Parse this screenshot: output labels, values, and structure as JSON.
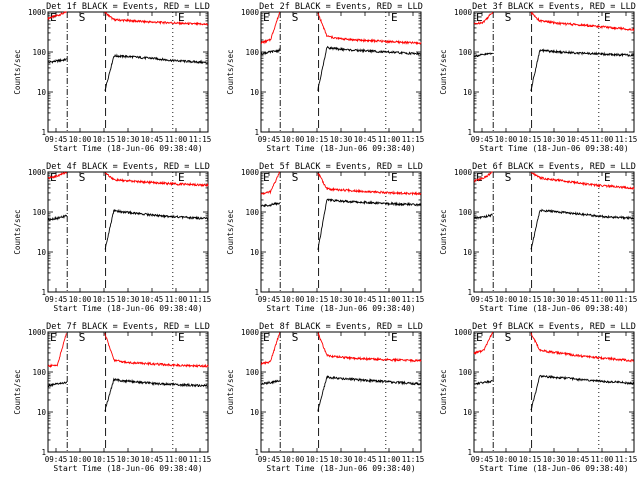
{
  "chart_data": [
    {
      "type": "line",
      "title": "Det 1f BLACK = Events, RED = LLD",
      "xlabel": "Start Time (18-Jun-06 09:38:40)",
      "ylabel": "Counts/sec",
      "yscale": "log",
      "ylim": [
        1,
        1000
      ],
      "yticks": [
        "1",
        "10",
        "100",
        "1000"
      ],
      "xticks": [
        "09:45",
        "10:00",
        "10:15",
        "10:30",
        "10:45",
        "11:00",
        "11:15"
      ],
      "markers": [
        "E",
        "S",
        "E"
      ],
      "series": [
        {
          "color": "#ff0000",
          "values": [
            700,
            820,
            1000,
            null,
            null,
            null,
            1000,
            640,
            620,
            600,
            580,
            560,
            550,
            540,
            520,
            510,
            500,
            490
          ]
        },
        {
          "color": "#000000",
          "values": [
            55,
            60,
            65,
            null,
            null,
            null,
            10,
            80,
            78,
            76,
            72,
            70,
            66,
            62,
            60,
            58,
            56,
            54
          ]
        }
      ]
    },
    {
      "type": "line",
      "title": "Det 2f BLACK = Events, RED = LLD",
      "xlabel": "Start Time (18-Jun-06 09:38:40)",
      "ylabel": "Counts/sec",
      "yscale": "log",
      "ylim": [
        1,
        1000
      ],
      "yticks": [
        "1",
        "10",
        "100",
        "1000"
      ],
      "xticks": [
        "09:45",
        "10:00",
        "10:15",
        "10:30",
        "10:45",
        "11:00",
        "11:15"
      ],
      "markers": [
        "E",
        "S",
        "E"
      ],
      "series": [
        {
          "color": "#ff0000",
          "values": [
            170,
            200,
            1000,
            null,
            null,
            null,
            1000,
            250,
            220,
            210,
            200,
            195,
            190,
            185,
            180,
            175,
            170,
            165
          ]
        },
        {
          "color": "#000000",
          "values": [
            90,
            100,
            110,
            null,
            null,
            null,
            10,
            130,
            120,
            115,
            110,
            108,
            105,
            100,
            98,
            95,
            92,
            90
          ]
        }
      ]
    },
    {
      "type": "line",
      "title": "Det 3f BLACK = Events, RED = LLD",
      "xlabel": "Start Time (18-Jun-06 09:38:40)",
      "ylabel": "Counts/sec",
      "yscale": "log",
      "ylim": [
        1,
        1000
      ],
      "yticks": [
        "1",
        "10",
        "100",
        "1000"
      ],
      "xticks": [
        "09:45",
        "10:00",
        "10:15",
        "10:30",
        "10:45",
        "11:00",
        "11:15"
      ],
      "markers": [
        "E",
        "S",
        "E"
      ],
      "series": [
        {
          "color": "#ff0000",
          "values": [
            500,
            560,
            1000,
            null,
            null,
            null,
            1000,
            600,
            560,
            520,
            500,
            480,
            460,
            440,
            420,
            400,
            380,
            360
          ]
        },
        {
          "color": "#000000",
          "values": [
            80,
            85,
            95,
            null,
            null,
            null,
            10,
            110,
            105,
            100,
            98,
            95,
            92,
            90,
            88,
            86,
            84,
            82
          ]
        }
      ]
    },
    {
      "type": "line",
      "title": "Det 4f BLACK = Events, RED = LLD",
      "xlabel": "Start Time (18-Jun-06 09:38:40)",
      "ylabel": "Counts/sec",
      "yscale": "log",
      "ylim": [
        1,
        1000
      ],
      "yticks": [
        "1",
        "10",
        "100",
        "1000"
      ],
      "xticks": [
        "09:45",
        "10:00",
        "10:15",
        "10:30",
        "10:45",
        "11:00",
        "11:15"
      ],
      "markers": [
        "E",
        "S",
        "E"
      ],
      "series": [
        {
          "color": "#ff0000",
          "values": [
            700,
            800,
            1000,
            null,
            null,
            null,
            1000,
            640,
            610,
            590,
            570,
            550,
            530,
            510,
            500,
            490,
            480,
            470
          ]
        },
        {
          "color": "#000000",
          "values": [
            65,
            70,
            80,
            null,
            null,
            null,
            10,
            110,
            100,
            95,
            90,
            85,
            80,
            78,
            75,
            72,
            70,
            68
          ]
        }
      ]
    },
    {
      "type": "line",
      "title": "Det 5f BLACK = Events, RED = LLD",
      "xlabel": "Start Time (18-Jun-06 09:38:40)",
      "ylabel": "Counts/sec",
      "yscale": "log",
      "ylim": [
        1,
        1000
      ],
      "yticks": [
        "1",
        "10",
        "100",
        "1000"
      ],
      "xticks": [
        "09:45",
        "10:00",
        "10:15",
        "10:30",
        "10:45",
        "11:00",
        "11:15"
      ],
      "markers": [
        "E",
        "S",
        "E"
      ],
      "series": [
        {
          "color": "#ff0000",
          "values": [
            280,
            320,
            1000,
            null,
            null,
            null,
            1000,
            380,
            360,
            350,
            340,
            330,
            320,
            310,
            300,
            295,
            290,
            285
          ]
        },
        {
          "color": "#000000",
          "values": [
            140,
            150,
            170,
            null,
            null,
            null,
            10,
            200,
            190,
            185,
            180,
            175,
            170,
            165,
            160,
            158,
            155,
            150
          ]
        }
      ]
    },
    {
      "type": "line",
      "title": "Det 6f BLACK = Events, RED = LLD",
      "xlabel": "Start Time (18-Jun-06 09:38:40)",
      "ylabel": "Counts/sec",
      "yscale": "log",
      "ylim": [
        1,
        1000
      ],
      "yticks": [
        "1",
        "10",
        "100",
        "1000"
      ],
      "xticks": [
        "09:45",
        "10:00",
        "10:15",
        "10:30",
        "10:45",
        "11:00",
        "11:15"
      ],
      "markers": [
        "E",
        "S",
        "E"
      ],
      "series": [
        {
          "color": "#ff0000",
          "values": [
            600,
            700,
            1000,
            null,
            null,
            null,
            1000,
            720,
            660,
            620,
            580,
            540,
            500,
            470,
            450,
            430,
            410,
            390
          ]
        },
        {
          "color": "#000000",
          "values": [
            70,
            75,
            85,
            null,
            null,
            null,
            10,
            110,
            105,
            100,
            95,
            90,
            85,
            80,
            76,
            74,
            72,
            70
          ]
        }
      ]
    },
    {
      "type": "line",
      "title": "Det 7f BLACK = Events, RED = LLD",
      "xlabel": "Start Time (18-Jun-06 09:38:40)",
      "ylabel": "Counts/sec",
      "yscale": "log",
      "ylim": [
        1,
        1000
      ],
      "yticks": [
        "1",
        "10",
        "100",
        "1000"
      ],
      "xticks": [
        "09:45",
        "10:00",
        "10:15",
        "10:30",
        "10:45",
        "11:00",
        "11:15"
      ],
      "markers": [
        "E",
        "S",
        "E"
      ],
      "series": [
        {
          "color": "#ff0000",
          "values": [
            140,
            150,
            1000,
            null,
            null,
            null,
            1000,
            200,
            180,
            170,
            165,
            160,
            155,
            150,
            148,
            145,
            142,
            140
          ]
        },
        {
          "color": "#000000",
          "values": [
            45,
            50,
            55,
            null,
            null,
            null,
            10,
            65,
            60,
            58,
            55,
            52,
            50,
            50,
            48,
            47,
            46,
            45
          ]
        }
      ]
    },
    {
      "type": "line",
      "title": "Det 8f BLACK = Events, RED = LLD",
      "xlabel": "Start Time (18-Jun-06 09:38:40)",
      "ylabel": "Counts/sec",
      "yscale": "log",
      "ylim": [
        1,
        1000
      ],
      "yticks": [
        "1",
        "10",
        "100",
        "1000"
      ],
      "xticks": [
        "09:45",
        "10:00",
        "10:15",
        "10:30",
        "10:45",
        "11:00",
        "11:15"
      ],
      "markers": [
        "E",
        "S",
        "E"
      ],
      "series": [
        {
          "color": "#ff0000",
          "values": [
            160,
            180,
            1000,
            null,
            null,
            null,
            1000,
            260,
            240,
            230,
            220,
            215,
            210,
            205,
            200,
            198,
            195,
            190
          ]
        },
        {
          "color": "#000000",
          "values": [
            50,
            55,
            60,
            null,
            null,
            null,
            10,
            75,
            70,
            68,
            65,
            62,
            60,
            58,
            56,
            54,
            52,
            50
          ]
        }
      ]
    },
    {
      "type": "line",
      "title": "Det 9f BLACK = Events, RED = LLD",
      "xlabel": "Start Time (18-Jun-06 09:38:40)",
      "ylabel": "Counts/sec",
      "yscale": "log",
      "ylim": [
        1,
        1000
      ],
      "yticks": [
        "1",
        "10",
        "100",
        "1000"
      ],
      "xticks": [
        "09:45",
        "10:00",
        "10:15",
        "10:30",
        "10:45",
        "11:00",
        "11:15"
      ],
      "markers": [
        "E",
        "S",
        "E"
      ],
      "series": [
        {
          "color": "#ff0000",
          "values": [
            300,
            340,
            1000,
            null,
            null,
            null,
            1000,
            350,
            320,
            300,
            280,
            260,
            240,
            230,
            220,
            210,
            200,
            190
          ]
        },
        {
          "color": "#000000",
          "values": [
            50,
            55,
            60,
            null,
            null,
            null,
            10,
            80,
            76,
            72,
            70,
            66,
            62,
            60,
            58,
            56,
            54,
            52
          ]
        }
      ]
    }
  ]
}
